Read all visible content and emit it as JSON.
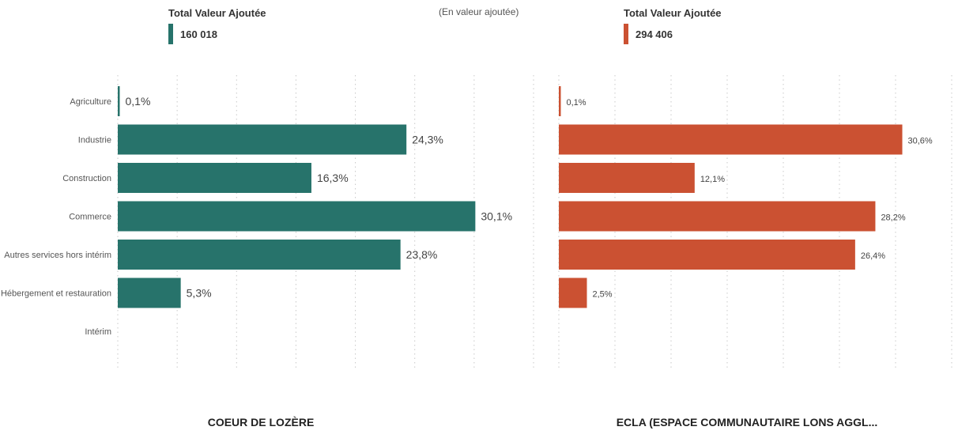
{
  "header": {
    "subtitle": "(En valeur ajoutée)"
  },
  "colors": {
    "left": "#27736b",
    "right": "#cb5132",
    "grid": "#c8c8c8"
  },
  "chart_data": [
    {
      "type": "bar",
      "orientation": "horizontal",
      "kpi": {
        "title": "Total Valeur Ajoutée",
        "value": "160 018"
      },
      "caption": "COEUR DE LOZÈRE",
      "categories": [
        "Agriculture",
        "Industrie",
        "Construction",
        "Commerce",
        "Autres services hors intérim",
        "Hébergement et restauration",
        "Intérim"
      ],
      "values": [
        0.1,
        24.3,
        16.3,
        30.1,
        23.8,
        5.3,
        null
      ],
      "labels": [
        "0,1%",
        "24,3%",
        "16,3%",
        "30,1%",
        "23,8%",
        "5,3%",
        ""
      ],
      "unit": "%",
      "xlim": [
        0,
        35
      ],
      "grid": true
    },
    {
      "type": "bar",
      "orientation": "horizontal",
      "kpi": {
        "title": "Total Valeur Ajoutée",
        "value": "294 406"
      },
      "caption": "ECLA (ESPACE COMMUNAUTAIRE LONS AGGL...",
      "categories": [
        "Agriculture",
        "Industrie",
        "Construction",
        "Commerce",
        "Autres services hors intérim",
        "Hébergement et restauration",
        "Intérim"
      ],
      "values": [
        0.1,
        30.6,
        12.1,
        28.2,
        26.4,
        2.5,
        null
      ],
      "labels": [
        "0,1%",
        "30,6%",
        "12,1%",
        "28,2%",
        "26,4%",
        "2,5%",
        ""
      ],
      "unit": "%",
      "xlim": [
        0,
        35
      ],
      "grid": true
    }
  ]
}
